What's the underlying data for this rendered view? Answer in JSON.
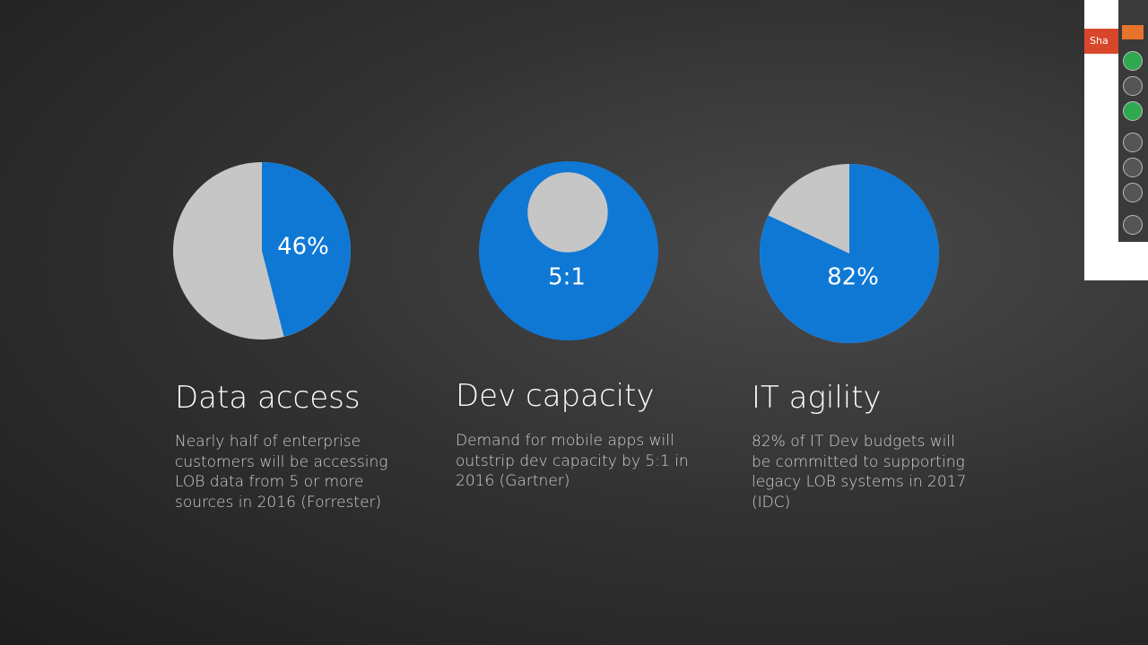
{
  "toolbar": {
    "share_label": "Sha"
  },
  "colors": {
    "highlight": "#0f78d4",
    "rest": "#c6c6c6"
  },
  "stats": [
    {
      "kind": "percent",
      "value": 46,
      "value_label": "46%",
      "title": "Data access",
      "description": "Nearly half of enterprise customers will be accessing LOB data from 5 or more sources in 2016 (Forrester)"
    },
    {
      "kind": "ratio",
      "ratio": [
        5,
        1
      ],
      "value_label": "5:1",
      "title": "Dev capacity",
      "description": "Demand for mobile apps will outstrip dev capacity by 5:1 in 2016 (Gartner)"
    },
    {
      "kind": "percent",
      "value": 82,
      "value_label": "82%",
      "title": "IT agility",
      "description": "82% of IT Dev budgets will be committed to supporting legacy LOB systems in 2017 (IDC)"
    }
  ]
}
